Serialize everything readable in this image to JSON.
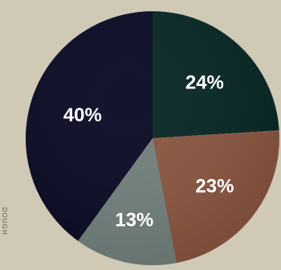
{
  "chart_data": {
    "type": "pie",
    "title": "",
    "labels": [
      "24%",
      "23%",
      "13%",
      "40%"
    ],
    "values": [
      24,
      23,
      13,
      40
    ],
    "colors": [
      "#062624",
      "#8a5640",
      "#72807c",
      "#090a24"
    ],
    "start": "12 o'clock",
    "direction": "clockwise",
    "legend": "none"
  },
  "side_text": "DOUGH"
}
